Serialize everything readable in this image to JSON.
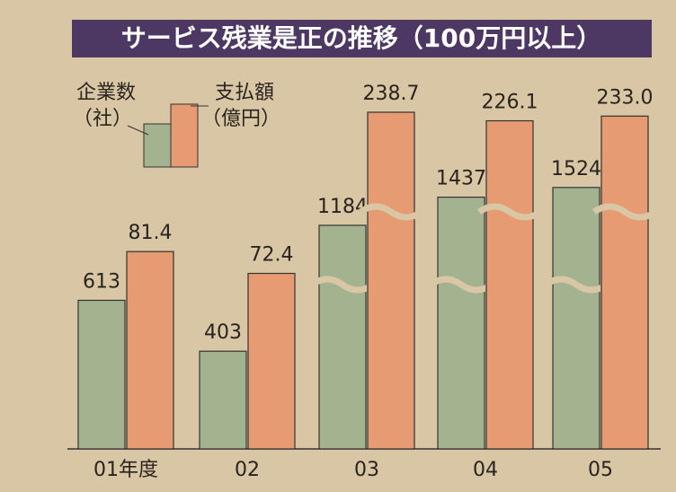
{
  "chart_data": {
    "type": "bar",
    "title": "サービス残業是正の推移（100万円以上）",
    "categories": [
      "01年度",
      "02",
      "03",
      "04",
      "05"
    ],
    "series": [
      {
        "name": "企業数",
        "unit": "（社）",
        "color": "#a4b38f",
        "values": [
          613,
          403,
          1184,
          1437,
          1524
        ]
      },
      {
        "name": "支払額",
        "unit": "（億円）",
        "color": "#e79b73",
        "values": [
          81.4,
          72.4,
          238.7,
          226.1,
          233.0
        ],
        "value_labels": [
          "81.4",
          "72.4",
          "238.7",
          "226.1",
          "233.0"
        ]
      }
    ]
  }
}
